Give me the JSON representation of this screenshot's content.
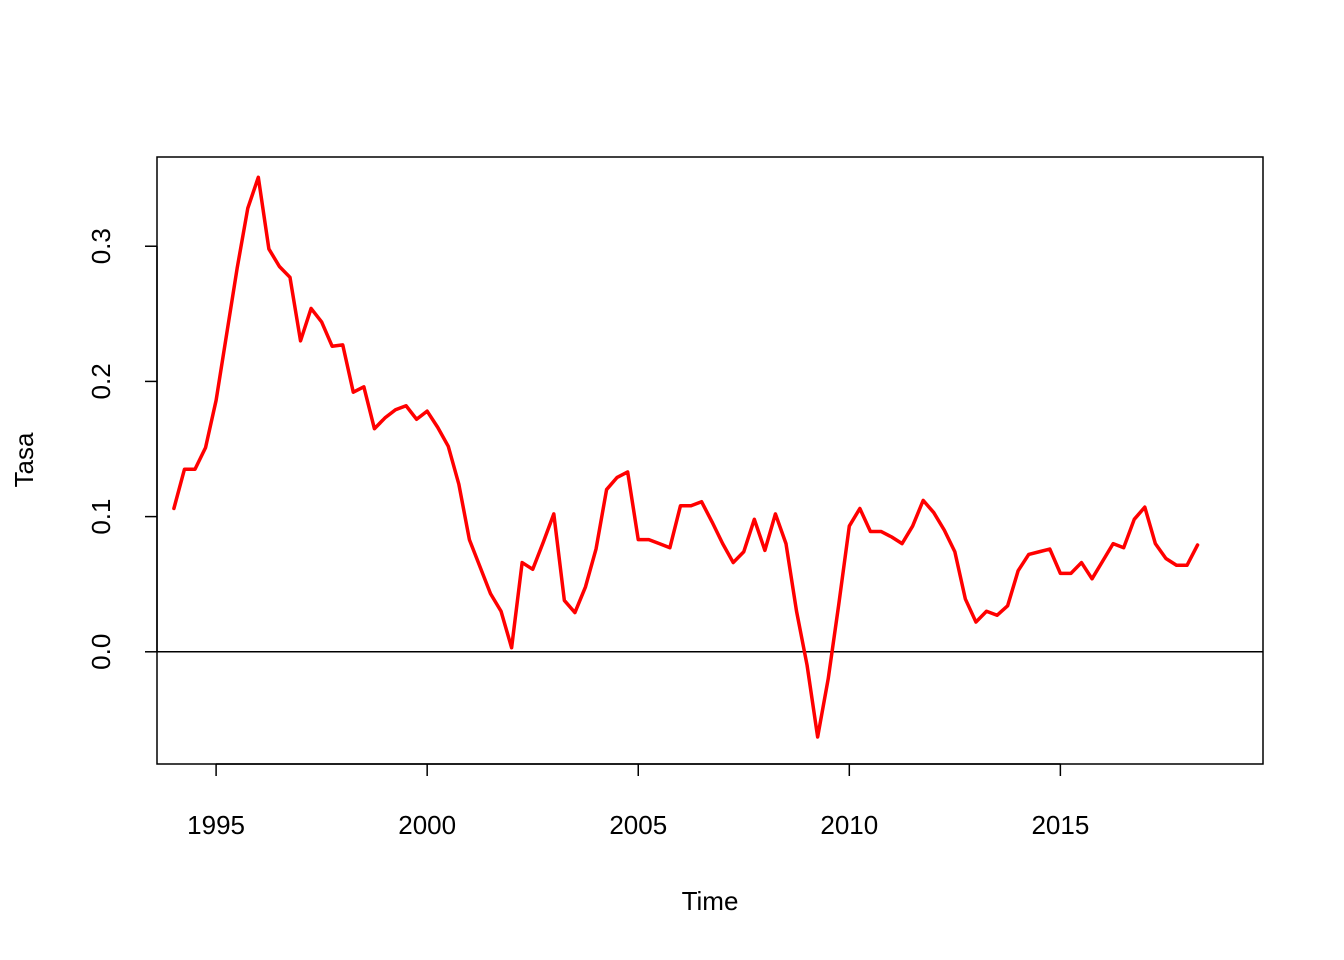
{
  "chart_data": {
    "type": "line",
    "title": "",
    "xlabel": "Time",
    "ylabel": "Tasa",
    "xlim": [
      1993.6,
      2019.8
    ],
    "ylim": [
      -0.083,
      0.366
    ],
    "x_ticks": [
      1995,
      2000,
      2005,
      2010,
      2015
    ],
    "x_tick_labels": [
      "1995",
      "2000",
      "2005",
      "2010",
      "2015"
    ],
    "y_ticks": [
      0.0,
      0.1,
      0.2,
      0.3
    ],
    "y_tick_labels": [
      "0.0",
      "0.1",
      "0.2",
      "0.3"
    ],
    "reference_line": {
      "y": 0.0,
      "color": "#000000"
    },
    "series_color": "#ff0000",
    "grid": false,
    "legend": "none",
    "x": [
      1994.0,
      1994.25,
      1994.5,
      1994.75,
      1995.0,
      1995.25,
      1995.5,
      1995.75,
      1996.0,
      1996.25,
      1996.5,
      1996.75,
      1997.0,
      1997.25,
      1997.5,
      1997.75,
      1998.0,
      1998.25,
      1998.5,
      1998.75,
      1999.0,
      1999.25,
      1999.5,
      1999.75,
      2000.0,
      2000.25,
      2000.5,
      2000.75,
      2001.0,
      2001.25,
      2001.5,
      2001.75,
      2002.0,
      2002.25,
      2002.5,
      2002.75,
      2003.0,
      2003.25,
      2003.5,
      2003.75,
      2004.0,
      2004.25,
      2004.5,
      2004.75,
      2005.0,
      2005.25,
      2005.5,
      2005.75,
      2006.0,
      2006.25,
      2006.5,
      2006.75,
      2007.0,
      2007.25,
      2007.5,
      2007.75,
      2008.0,
      2008.25,
      2008.5,
      2008.75,
      2009.0,
      2009.25,
      2009.5,
      2009.75,
      2010.0,
      2010.25,
      2010.5,
      2010.75,
      2011.0,
      2011.25,
      2011.5,
      2011.75,
      2012.0,
      2012.25,
      2012.5,
      2012.75,
      2013.0,
      2013.25,
      2013.5,
      2013.75,
      2014.0,
      2014.25,
      2014.5,
      2014.75,
      2015.0,
      2015.25,
      2015.5,
      2015.75,
      2016.0,
      2016.25,
      2016.5,
      2016.75,
      2017.0,
      2017.25,
      2017.5,
      2017.75,
      2018.0,
      2018.25
    ],
    "values": [
      0.106,
      0.135,
      0.135,
      0.151,
      0.186,
      0.235,
      0.284,
      0.328,
      0.351,
      0.298,
      0.285,
      0.277,
      0.23,
      0.254,
      0.244,
      0.226,
      0.227,
      0.192,
      0.196,
      0.165,
      0.173,
      0.179,
      0.182,
      0.172,
      0.178,
      0.166,
      0.152,
      0.124,
      0.083,
      0.063,
      0.043,
      0.03,
      0.003,
      0.066,
      0.061,
      0.081,
      0.102,
      0.038,
      0.029,
      0.048,
      0.076,
      0.12,
      0.129,
      0.133,
      0.083,
      0.083,
      0.08,
      0.077,
      0.108,
      0.108,
      0.111,
      0.096,
      0.08,
      0.066,
      0.074,
      0.098,
      0.075,
      0.102,
      0.08,
      0.03,
      -0.01,
      -0.063,
      -0.02,
      0.035,
      0.093,
      0.106,
      0.089,
      0.089,
      0.085,
      0.08,
      0.093,
      0.112,
      0.103,
      0.09,
      0.074,
      0.039,
      0.022,
      0.03,
      0.027,
      0.034,
      0.06,
      0.072,
      0.074,
      0.076,
      0.058,
      0.058,
      0.066,
      0.054,
      0.067,
      0.08,
      0.077,
      0.098,
      0.107,
      0.08,
      0.069,
      0.064,
      0.064,
      0.079
    ]
  }
}
